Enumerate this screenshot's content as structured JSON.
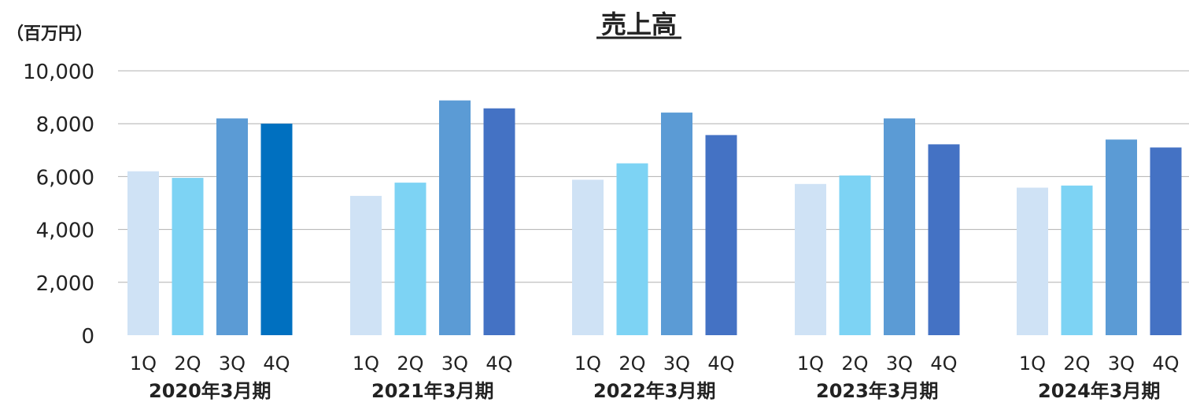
{
  "chart_data": {
    "type": "bar",
    "title": "売上高",
    "unit_label": "（百万円）",
    "ylim": [
      0,
      10000
    ],
    "y_ticks": [
      "0",
      "2,000",
      "4,000",
      "6,000",
      "8,000",
      "10,000"
    ],
    "y_tick_values": [
      0,
      2000,
      4000,
      6000,
      8000,
      10000
    ],
    "grid": true,
    "quarter_labels": [
      "1Q",
      "2Q",
      "3Q",
      "4Q"
    ],
    "groups": [
      {
        "label": "2020年3月期",
        "values": [
          6200,
          5950,
          8200,
          8000
        ]
      },
      {
        "label": "2021年3月期",
        "values": [
          5270,
          5770,
          8880,
          8580
        ]
      },
      {
        "label": "2022年3月期",
        "values": [
          5880,
          6500,
          8420,
          7570
        ]
      },
      {
        "label": "2023年3月期",
        "values": [
          5720,
          6040,
          8200,
          7220
        ]
      },
      {
        "label": "2024年3月期",
        "values": [
          5580,
          5660,
          7400,
          7100
        ]
      }
    ],
    "colors": {
      "q1": "#cfe2f5",
      "q2": "#7dd3f4",
      "q3": "#5b9bd5",
      "q4": "#4472c4",
      "q4_first_group": "#0070c0",
      "grid": "#b0b0b0",
      "axis": "#888888"
    }
  }
}
